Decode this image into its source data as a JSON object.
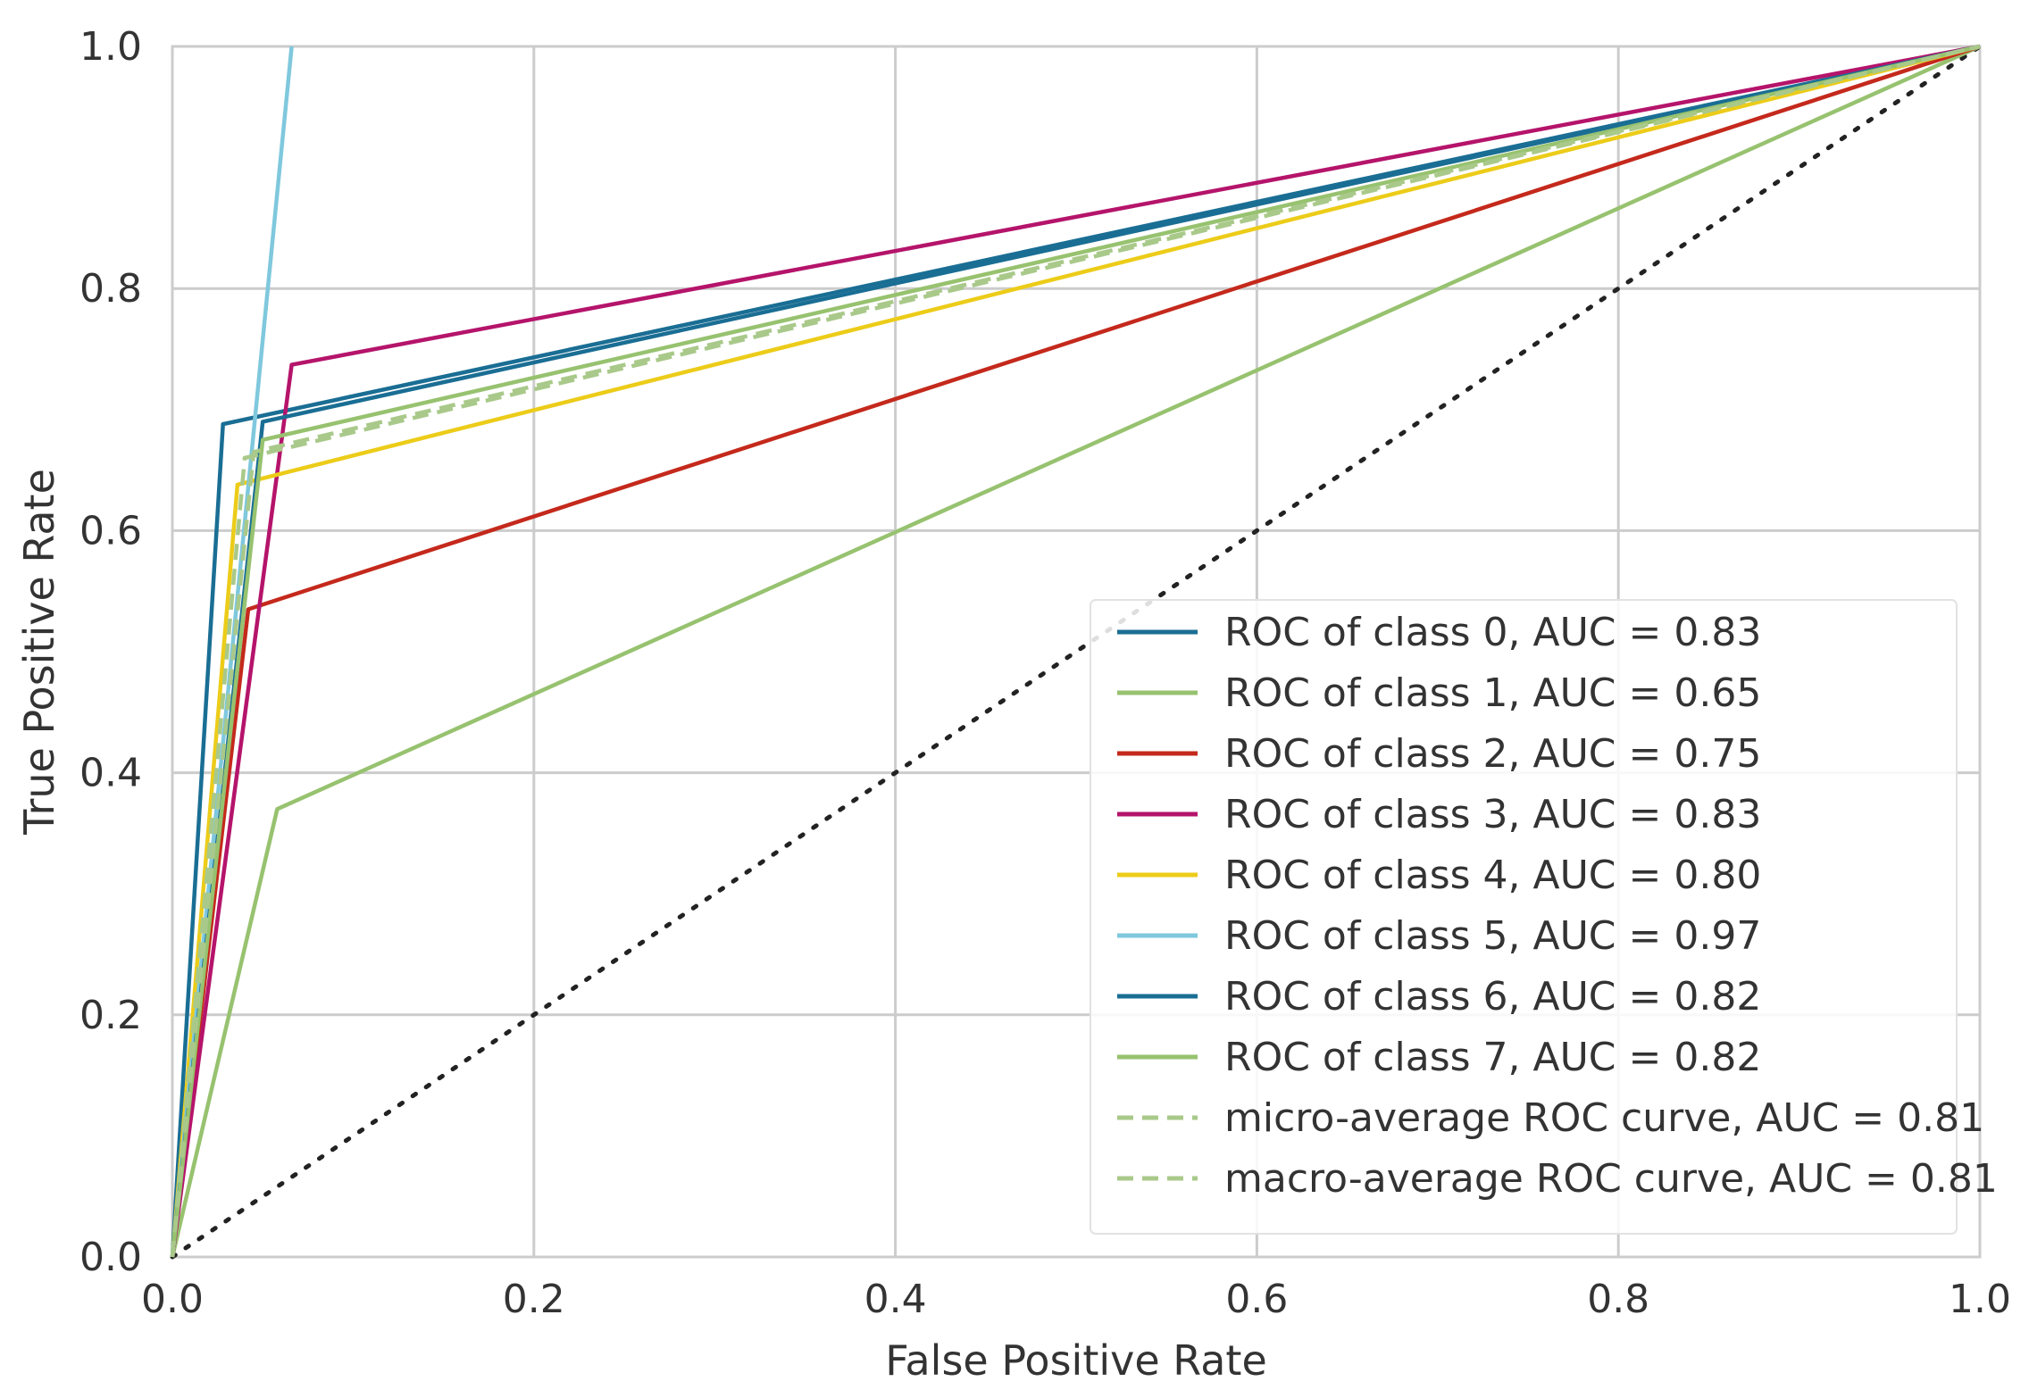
{
  "chart_data": {
    "type": "line",
    "title": "",
    "xlabel": "False Positive Rate",
    "ylabel": "True Positive Rate",
    "xlim": [
      0.0,
      1.0
    ],
    "ylim": [
      0.0,
      1.0
    ],
    "xticks": [
      "0.0",
      "0.2",
      "0.4",
      "0.6",
      "0.8",
      "1.0"
    ],
    "yticks": [
      "0.0",
      "0.2",
      "0.4",
      "0.6",
      "0.8",
      "1.0"
    ],
    "grid": true,
    "legend_position": "lower-right",
    "series": [
      {
        "name": "ROC of class 0, AUC = 0.83",
        "color": "#1a6e94",
        "dash": "solid",
        "x": [
          0.0,
          0.028,
          1.0
        ],
        "y": [
          0.0,
          0.688,
          1.0
        ]
      },
      {
        "name": "ROC of class 1, AUC = 0.65",
        "color": "#97c26f",
        "dash": "solid",
        "x": [
          0.0,
          0.058,
          1.0
        ],
        "y": [
          0.0,
          0.37,
          1.0
        ]
      },
      {
        "name": "ROC of class 2, AUC = 0.75",
        "color": "#c4291c",
        "dash": "solid",
        "x": [
          0.0,
          0.042,
          1.0
        ],
        "y": [
          0.0,
          0.535,
          1.0
        ]
      },
      {
        "name": "ROC of class 3, AUC = 0.83",
        "color": "#b5146b",
        "dash": "solid",
        "x": [
          0.0,
          0.066,
          1.0
        ],
        "y": [
          0.0,
          0.737,
          1.0
        ]
      },
      {
        "name": "ROC of class 4, AUC = 0.80",
        "color": "#eccc19",
        "dash": "solid",
        "x": [
          0.0,
          0.036,
          1.0
        ],
        "y": [
          0.0,
          0.638,
          1.0
        ]
      },
      {
        "name": "ROC of class 5, AUC = 0.97",
        "color": "#7fc8dd",
        "dash": "solid",
        "x": [
          0.0,
          0.066
        ],
        "y": [
          0.0,
          1.0
        ]
      },
      {
        "name": "ROC of class 6, AUC = 0.82",
        "color": "#1a6e94",
        "dash": "solid",
        "x": [
          0.0,
          0.05,
          1.0
        ],
        "y": [
          0.0,
          0.69,
          1.0
        ]
      },
      {
        "name": "ROC of class 7, AUC = 0.82",
        "color": "#97c26f",
        "dash": "solid",
        "x": [
          0.0,
          0.05,
          1.0
        ],
        "y": [
          0.0,
          0.675,
          1.0
        ]
      },
      {
        "name": "micro-average ROC curve, AUC = 0.81",
        "color": "#a9c98a",
        "dash": "dashed",
        "x": [
          0.0,
          0.04,
          1.0
        ],
        "y": [
          0.0,
          0.66,
          1.0
        ]
      },
      {
        "name": "macro-average ROC curve, AUC = 0.81",
        "color": "#a9c98a",
        "dash": "dashed",
        "x": [
          0.0,
          0.045,
          1.0
        ],
        "y": [
          0.0,
          0.665,
          1.0
        ]
      }
    ],
    "reference_line": {
      "name": "chance",
      "color": "#222222",
      "dash": "dotted",
      "x": [
        0.0,
        1.0
      ],
      "y": [
        0.0,
        1.0
      ]
    }
  }
}
